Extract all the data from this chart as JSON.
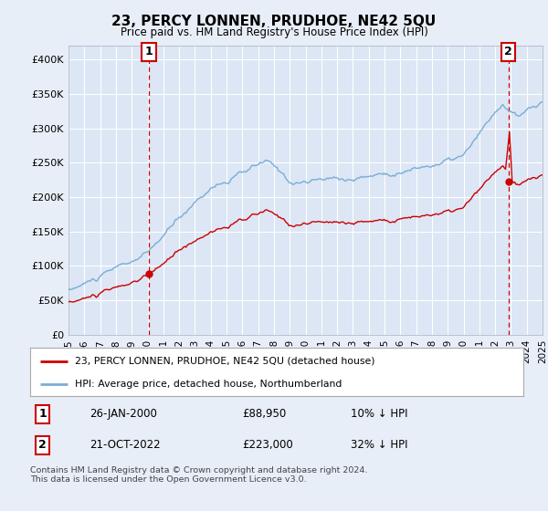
{
  "title": "23, PERCY LONNEN, PRUDHOE, NE42 5QU",
  "subtitle": "Price paid vs. HM Land Registry's House Price Index (HPI)",
  "legend_line1": "23, PERCY LONNEN, PRUDHOE, NE42 5QU (detached house)",
  "legend_line2": "HPI: Average price, detached house, Northumberland",
  "annotation1_date": "26-JAN-2000",
  "annotation1_price": "£88,950",
  "annotation1_hpi": "10% ↓ HPI",
  "annotation2_date": "21-OCT-2022",
  "annotation2_price": "£223,000",
  "annotation2_hpi": "32% ↓ HPI",
  "footer": "Contains HM Land Registry data © Crown copyright and database right 2024.\nThis data is licensed under the Open Government Licence v3.0.",
  "background_color": "#e8eef8",
  "plot_bg_color": "#dce6f5",
  "hpi_color": "#7aadd4",
  "price_color": "#cc0000",
  "annotation_box_color": "#cc0000",
  "grid_color": "#ffffff",
  "ylim": [
    0,
    420000
  ],
  "yticks": [
    0,
    50000,
    100000,
    150000,
    200000,
    250000,
    300000,
    350000,
    400000
  ],
  "xstart_year": 1995,
  "xend_year": 2025
}
